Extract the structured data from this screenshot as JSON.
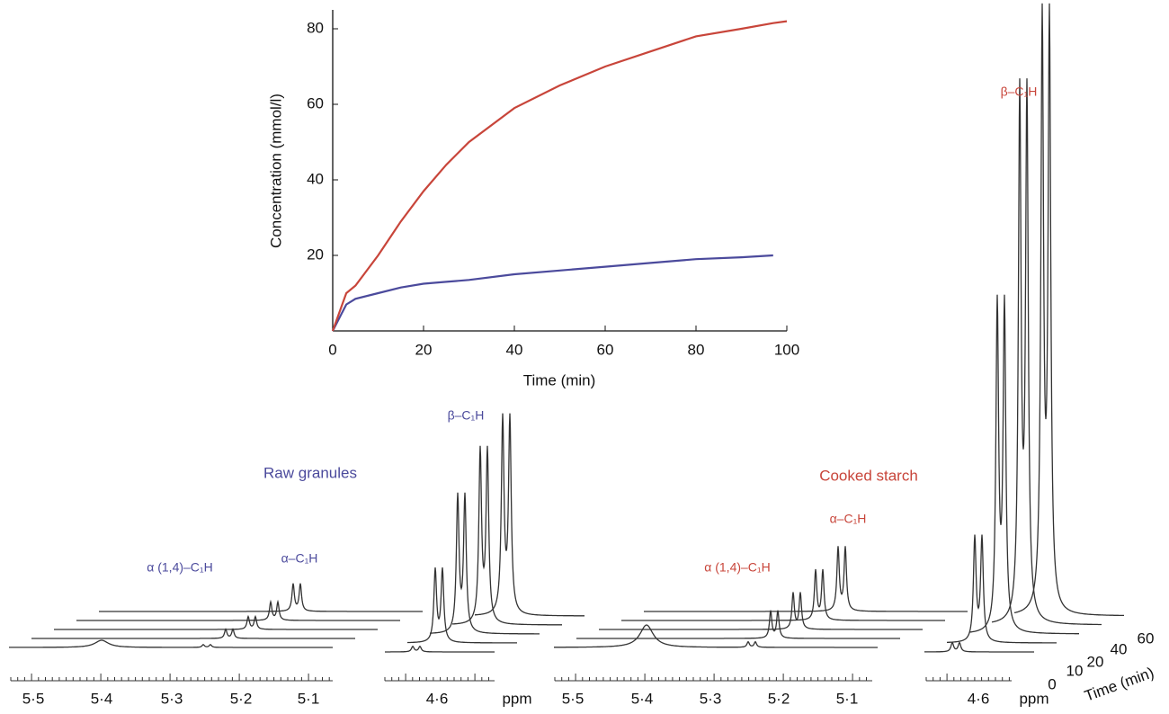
{
  "chart_data": {
    "type": "line",
    "x": [
      0,
      3,
      5,
      10,
      15,
      20,
      25,
      30,
      40,
      50,
      60,
      70,
      80,
      90,
      97,
      100
    ],
    "series": [
      {
        "name": "Raw granules",
        "color": "#4b4a9c",
        "values": [
          0,
          7,
          8.5,
          10,
          11.5,
          12.5,
          13,
          13.5,
          15,
          16,
          17,
          18,
          19,
          19.5,
          20,
          null
        ]
      },
      {
        "name": "Cooked starch",
        "color": "#c8453a",
        "values": [
          0,
          10,
          12,
          20,
          29,
          37,
          44,
          50,
          59,
          65,
          70,
          74,
          78,
          80,
          81.5,
          82
        ]
      }
    ],
    "xlabel": "Time (min)",
    "ylabel": "Concentration (mmol/l)",
    "xlim": [
      0,
      100
    ],
    "ylim": [
      0,
      85
    ],
    "xticks": [
      0,
      20,
      40,
      60,
      80,
      100
    ],
    "yticks": [
      20,
      40,
      60,
      80
    ]
  },
  "spectra": {
    "peak_labels": {
      "alpha14": "α (1,4)–C₁H",
      "alpha": "α–C₁H",
      "beta": "β–C₁H"
    },
    "ppm_ticks": [
      "5·5",
      "5·4",
      "5·3",
      "5·2",
      "5·1",
      "4·6"
    ],
    "ppm_unit": "ppm",
    "time_labels": [
      "0",
      "10",
      "20",
      "40",
      "60"
    ],
    "time_axis": "Time (min)"
  }
}
